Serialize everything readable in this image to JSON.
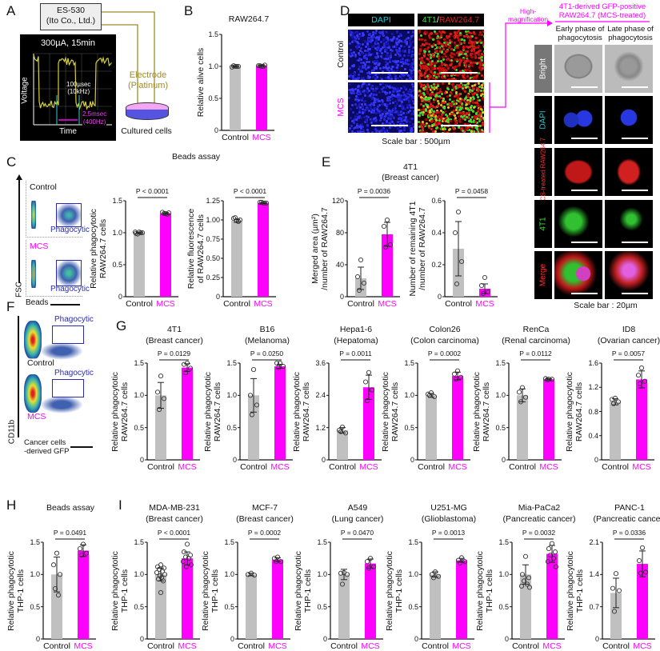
{
  "panel_letters": {
    "A": "A",
    "B": "B",
    "C": "C",
    "D": "D",
    "E": "E",
    "F": "F",
    "G": "G",
    "H": "H",
    "I": "I"
  },
  "colors": {
    "control": "#c0c0c0",
    "mcs": "#ff00ff",
    "wire": "#a08a2a",
    "phagocytic_gate": "#2b2bb0",
    "dapi_text": "#29c6d6"
  },
  "panel_a": {
    "device": [
      "ES-530",
      "(Ito Co., Ltd.)"
    ],
    "scope_title": "300µA, 15min",
    "y_axis": "Voltage",
    "x_axis": "Time",
    "pulse_width": [
      "100µsec",
      "(10kHz)"
    ],
    "period": [
      "2.5msec",
      "(400Hz)"
    ],
    "electrode": [
      "Electrode",
      "(Platinum)"
    ],
    "dish_label": "Cultured cells"
  },
  "panel_c": {
    "title": "Beads assay",
    "flow_y": "FSC",
    "flow_x": "Beads",
    "rows": [
      "Control",
      "MCS"
    ],
    "gate": "Phagocytic"
  },
  "panel_d": {
    "columns": [
      "DAPI",
      "4T1",
      "/",
      "RAW264.7"
    ],
    "rows": [
      "Control",
      "MCS"
    ],
    "scale_bar": "Scale bar : 500µm",
    "arrow_label": [
      "High-",
      "magnification"
    ],
    "hm_title": [
      "4T1-derived GFP-positive",
      "RAW264.7 (MCS-treated)"
    ],
    "hm_columns": [
      [
        "Early phase of",
        "phagocytosis"
      ],
      [
        "Late phase of",
        "phagocytosis"
      ]
    ],
    "hm_rows": [
      "Bright",
      "DAPI",
      "MCS-treated RAW264.7",
      "4T1",
      "Merge"
    ],
    "hm_scale_bar": "Scale bar : 20µm"
  },
  "panel_e": {
    "title": [
      "4T1",
      "(Breast cancer)"
    ]
  },
  "panel_f": {
    "rows": [
      "Control",
      "MCS"
    ],
    "gate": "Phagocytic",
    "flow_y": "CD11b",
    "flow_x": [
      "Cancer cells",
      "-derived GFP"
    ]
  },
  "chart_data": [
    {
      "id": "B",
      "type": "bar",
      "title": [
        "RAW264.7"
      ],
      "ylabel": [
        "Relative alive cells"
      ],
      "ylim": [
        0,
        1.5
      ],
      "yticks": [
        "0",
        "0.5",
        "1.0",
        "1.5"
      ],
      "p": "",
      "groups": [
        {
          "name": "Control",
          "mean": 1.0,
          "sd": 0.01,
          "points": [
            1.0,
            0.99,
            1.0,
            1.01,
            1.0
          ]
        },
        {
          "name": "MCS",
          "mean": 1.01,
          "sd": 0.01,
          "points": [
            1.0,
            1.01,
            1.02,
            1.01,
            1.0
          ]
        }
      ]
    },
    {
      "id": "C1",
      "type": "bar",
      "title": [],
      "ylabel": [
        "Relative phagocytotic",
        "RAW264.7 cells"
      ],
      "ylim": [
        0,
        1.5
      ],
      "yticks": [
        "0",
        "0.5",
        "1.0",
        "1.5"
      ],
      "p": "P < 0.0001",
      "groups": [
        {
          "name": "Control",
          "mean": 1.0,
          "sd": 0.01,
          "points": [
            1.01,
            0.99,
            1.0,
            0.98,
            1.0,
            1.01
          ]
        },
        {
          "name": "MCS",
          "mean": 1.3,
          "sd": 0.01,
          "points": [
            1.3,
            1.32,
            1.31,
            1.3,
            1.29
          ]
        }
      ]
    },
    {
      "id": "C2",
      "type": "bar",
      "title": [],
      "ylabel": [
        "Relative fluorescence",
        "of RAW264.7 cells"
      ],
      "ylim": [
        0,
        1.25
      ],
      "yticks": [
        "0",
        "0.25",
        "0.50",
        "0.75",
        "1.00",
        "1.25"
      ],
      "p": "P < 0.0001",
      "groups": [
        {
          "name": "Control",
          "mean": 0.99,
          "sd": 0.02,
          "points": [
            0.99,
            1.02,
            1.0,
            1.03,
            0.98
          ]
        },
        {
          "name": "MCS",
          "mean": 1.22,
          "sd": 0.005,
          "points": [
            1.22,
            1.23,
            1.22,
            1.23,
            1.22
          ]
        }
      ]
    },
    {
      "id": "E1",
      "type": "bar",
      "title": [],
      "ylabel": [
        "Merged area (µm²)",
        "/number of RAW264.7"
      ],
      "ylim": [
        0,
        120
      ],
      "yticks": [
        "0",
        "40",
        "80",
        "120"
      ],
      "p": "P = 0.0036",
      "groups": [
        {
          "name": "Control",
          "mean": 23,
          "sd": 14,
          "points": [
            46,
            25,
            17,
            8
          ]
        },
        {
          "name": "MCS",
          "mean": 78,
          "sd": 15,
          "points": [
            96,
            88,
            65,
            62
          ]
        }
      ]
    },
    {
      "id": "E2",
      "type": "bar",
      "title": [],
      "ylabel": [
        "Number of remaining 4T1",
        "/number of RAW264.7"
      ],
      "ylim": [
        0,
        0.6
      ],
      "yticks": [
        "0",
        "0.2",
        "0.4",
        "0.6"
      ],
      "p": "P = 0.0458",
      "groups": [
        {
          "name": "Control",
          "mean": 0.3,
          "sd": 0.17,
          "points": [
            0.53,
            0.4,
            0.22,
            0.08
          ]
        },
        {
          "name": "MCS",
          "mean": 0.05,
          "sd": 0.03,
          "points": [
            0.12,
            0.07,
            0.03,
            0.02
          ]
        }
      ]
    },
    {
      "id": "G1",
      "type": "bar",
      "title": [
        "4T1",
        "(Breast cancer)"
      ],
      "ylabel": [
        "Relative phagocytotic",
        "RAW264.7 cells"
      ],
      "ylim": [
        0,
        1.5
      ],
      "yticks": [
        "0",
        "0.5",
        "1.0",
        "1.5"
      ],
      "p": "P = 0.0129",
      "groups": [
        {
          "name": "Control",
          "mean": 1.0,
          "sd": 0.2,
          "points": [
            1.3,
            1.05,
            0.95,
            0.78
          ]
        },
        {
          "name": "MCS",
          "mean": 1.43,
          "sd": 0.06,
          "points": [
            1.5,
            1.48,
            1.42,
            1.35
          ]
        }
      ]
    },
    {
      "id": "G2",
      "type": "bar",
      "title": [
        "B16",
        "(Melanoma)"
      ],
      "ylabel": [
        "Relative phagocytotic",
        "RAW264.7 cells"
      ],
      "ylim": [
        0,
        1.5
      ],
      "yticks": [
        "0",
        "0.5",
        "1.0",
        "1.5"
      ],
      "p": "P = 0.0250",
      "groups": [
        {
          "name": "Control",
          "mean": 1.0,
          "sd": 0.26,
          "points": [
            1.4,
            1.0,
            0.85,
            0.7
          ]
        },
        {
          "name": "MCS",
          "mean": 1.45,
          "sd": 0.03,
          "points": [
            1.5,
            1.5,
            1.45,
            1.43
          ]
        }
      ]
    },
    {
      "id": "G3",
      "type": "bar",
      "title": [
        "Hepa1-6",
        "(Hepatoma)"
      ],
      "ylabel": [
        "Relative phagocytotic",
        "RAW264.7 cells"
      ],
      "ylim": [
        0,
        3.6
      ],
      "yticks": [
        "0",
        "1.2",
        "2.4",
        "3.6"
      ],
      "p": "P = 0.0011",
      "groups": [
        {
          "name": "Control",
          "mean": 1.1,
          "sd": 0.1,
          "points": [
            1.22,
            1.1,
            1.0,
            1.05
          ]
        },
        {
          "name": "MCS",
          "mean": 2.7,
          "sd": 0.45,
          "points": [
            3.25,
            2.9,
            2.6,
            2.2
          ]
        }
      ]
    },
    {
      "id": "G4",
      "type": "bar",
      "title": [
        "Colon26",
        "(Colon carcinoma)"
      ],
      "ylabel": [
        "Relative phagocytotic",
        "RAW264.7 cells"
      ],
      "ylim": [
        0,
        1.5
      ],
      "yticks": [
        "0",
        "0.5",
        "1.0",
        "1.5"
      ],
      "p": "P = 0.0002",
      "groups": [
        {
          "name": "Control",
          "mean": 1.0,
          "sd": 0.03,
          "points": [
            1.04,
            1.02,
            0.98,
            1.0
          ]
        },
        {
          "name": "MCS",
          "mean": 1.3,
          "sd": 0.06,
          "points": [
            1.38,
            1.33,
            1.28,
            1.25
          ]
        }
      ]
    },
    {
      "id": "G5",
      "type": "bar",
      "title": [
        "RenCa",
        "(Renal carcinoma)"
      ],
      "ylabel": [
        "Relative phagocytotic",
        "RAW264.7 cells"
      ],
      "ylim": [
        0,
        1.5
      ],
      "yticks": [
        "0",
        "0.5",
        "1.0",
        "1.5"
      ],
      "p": "P = 0.0112",
      "groups": [
        {
          "name": "Control",
          "mean": 1.0,
          "sd": 0.1,
          "points": [
            1.12,
            1.05,
            0.97,
            0.9
          ]
        },
        {
          "name": "MCS",
          "mean": 1.25,
          "sd": 0.01,
          "points": [
            1.25,
            1.26,
            1.25,
            1.24
          ]
        }
      ]
    },
    {
      "id": "G6",
      "type": "bar",
      "title": [
        "ID8",
        "(Ovarian cancer)"
      ],
      "ylabel": [
        "Relative phagocytotic",
        "RAW264.7 cells"
      ],
      "ylim": [
        0,
        1.6
      ],
      "yticks": [
        "0",
        "0.4",
        "0.8",
        "1.2",
        "1.6"
      ],
      "p": "P = 0.0057",
      "groups": [
        {
          "name": "Control",
          "mean": 0.96,
          "sd": 0.05,
          "points": [
            1.02,
            1.0,
            0.96,
            0.93
          ]
        },
        {
          "name": "MCS",
          "mean": 1.33,
          "sd": 0.14,
          "points": [
            1.52,
            1.4,
            1.3,
            1.26
          ]
        }
      ]
    },
    {
      "id": "H",
      "type": "bar",
      "title": [
        "Beads assay"
      ],
      "ylabel": [
        "Relative phagocytotic",
        "THP-1 cells"
      ],
      "ylim": [
        0,
        1.5
      ],
      "yticks": [
        "0",
        "0.5",
        "1.0",
        "1.5"
      ],
      "p": "P = 0.0491",
      "groups": [
        {
          "name": "Control",
          "mean": 1.0,
          "sd": 0.27,
          "points": [
            1.33,
            1.15,
            1.0,
            0.78,
            0.68
          ]
        },
        {
          "name": "MCS",
          "mean": 1.37,
          "sd": 0.09,
          "points": [
            1.47,
            1.4,
            1.33,
            1.3
          ]
        }
      ]
    },
    {
      "id": "I1",
      "type": "bar",
      "title": [
        "MDA-MB-231",
        "(Breast cancer)"
      ],
      "ylabel": [
        "Relative phagocytotic",
        "THP-1 cells"
      ],
      "ylim": [
        0,
        1.5
      ],
      "yticks": [
        "0",
        "0.5",
        "1.0",
        "1.5"
      ],
      "p": "P < 0.0001",
      "groups": [
        {
          "name": "Control",
          "mean": 1.0,
          "sd": 0.1,
          "points": [
            1.15,
            1.12,
            1.1,
            1.08,
            1.05,
            1.03,
            1.0,
            0.98,
            0.95,
            0.93,
            0.9,
            0.72
          ]
        },
        {
          "name": "MCS",
          "mean": 1.25,
          "sd": 0.1,
          "points": [
            1.47,
            1.35,
            1.3,
            1.27,
            1.25,
            1.2,
            1.15,
            1.12
          ]
        }
      ]
    },
    {
      "id": "I2",
      "type": "bar",
      "title": [
        "MCF-7",
        "(Breast cancer)"
      ],
      "ylabel": [
        "Relative phagocytotic",
        "THP-1 cells"
      ],
      "ylim": [
        0,
        1.5
      ],
      "yticks": [
        "0",
        "0.5",
        "1.0",
        "1.5"
      ],
      "p": "P = 0.0002",
      "groups": [
        {
          "name": "Control",
          "mean": 1.0,
          "sd": 0.02,
          "points": [
            1.02,
            1.0,
            0.99
          ]
        },
        {
          "name": "MCS",
          "mean": 1.23,
          "sd": 0.03,
          "points": [
            1.27,
            1.25,
            1.2,
            1.2
          ]
        }
      ]
    },
    {
      "id": "I3",
      "type": "bar",
      "title": [
        "A549",
        "(Lung cancer)"
      ],
      "ylabel": [
        "Relative phagocytotic",
        "THP-1 cells"
      ],
      "ylim": [
        0,
        1.5
      ],
      "yticks": [
        "0",
        "0.5",
        "1.0",
        "1.5"
      ],
      "p": "P = 0.0470",
      "groups": [
        {
          "name": "Control",
          "mean": 1.0,
          "sd": 0.08,
          "points": [
            1.03,
            1.02,
            1.0,
            0.85
          ]
        },
        {
          "name": "MCS",
          "mean": 1.17,
          "sd": 0.07,
          "points": [
            1.25,
            1.2,
            1.12,
            1.1
          ]
        }
      ]
    },
    {
      "id": "I4",
      "type": "bar",
      "title": [
        "U251-MG",
        "(Glioblastoma)"
      ],
      "ylabel": [
        "Relative phagocytotic",
        "THP-1 cells"
      ],
      "ylim": [
        0,
        1.5
      ],
      "yticks": [
        "0",
        "0.5",
        "1.0",
        "1.5"
      ],
      "p": "P = 0.0013",
      "groups": [
        {
          "name": "Control",
          "mean": 1.0,
          "sd": 0.04,
          "points": [
            1.04,
            1.0,
            0.97,
            0.95
          ]
        },
        {
          "name": "MCS",
          "mean": 1.22,
          "sd": 0.03,
          "points": [
            1.26,
            1.22,
            1.2,
            1.18
          ]
        }
      ]
    },
    {
      "id": "I5",
      "type": "bar",
      "title": [
        "Mia-PaCa2",
        "(Pancreatic cancer)"
      ],
      "ylabel": [
        "Relative phagocytotic",
        "THP-1 cells"
      ],
      "ylim": [
        0,
        1.5
      ],
      "yticks": [
        "0",
        "0.5",
        "1.0",
        "1.5"
      ],
      "p": "P = 0.0032",
      "groups": [
        {
          "name": "Control",
          "mean": 1.0,
          "sd": 0.15,
          "points": [
            1.28,
            1.0,
            0.95,
            0.9,
            0.85,
            0.82,
            0.8
          ]
        },
        {
          "name": "MCS",
          "mean": 1.32,
          "sd": 0.13,
          "points": [
            1.48,
            1.4,
            1.35,
            1.3,
            1.25,
            1.2,
            1.12
          ]
        }
      ]
    },
    {
      "id": "I6",
      "type": "bar",
      "title": [
        "PANC-1",
        "(Pancreatic cancer)"
      ],
      "ylabel": [
        "Relative phagocytotic",
        "THP-1 cells"
      ],
      "ylim": [
        0,
        2.1
      ],
      "yticks": [
        "0",
        "0.7",
        "1.4",
        "2.1"
      ],
      "p": "P = 0.0336",
      "groups": [
        {
          "name": "Control",
          "mean": 1.0,
          "sd": 0.32,
          "points": [
            1.42,
            1.1,
            1.05,
            0.6
          ]
        },
        {
          "name": "MCS",
          "mean": 1.63,
          "sd": 0.28,
          "points": [
            1.98,
            1.7,
            1.45,
            1.43
          ]
        }
      ]
    }
  ]
}
